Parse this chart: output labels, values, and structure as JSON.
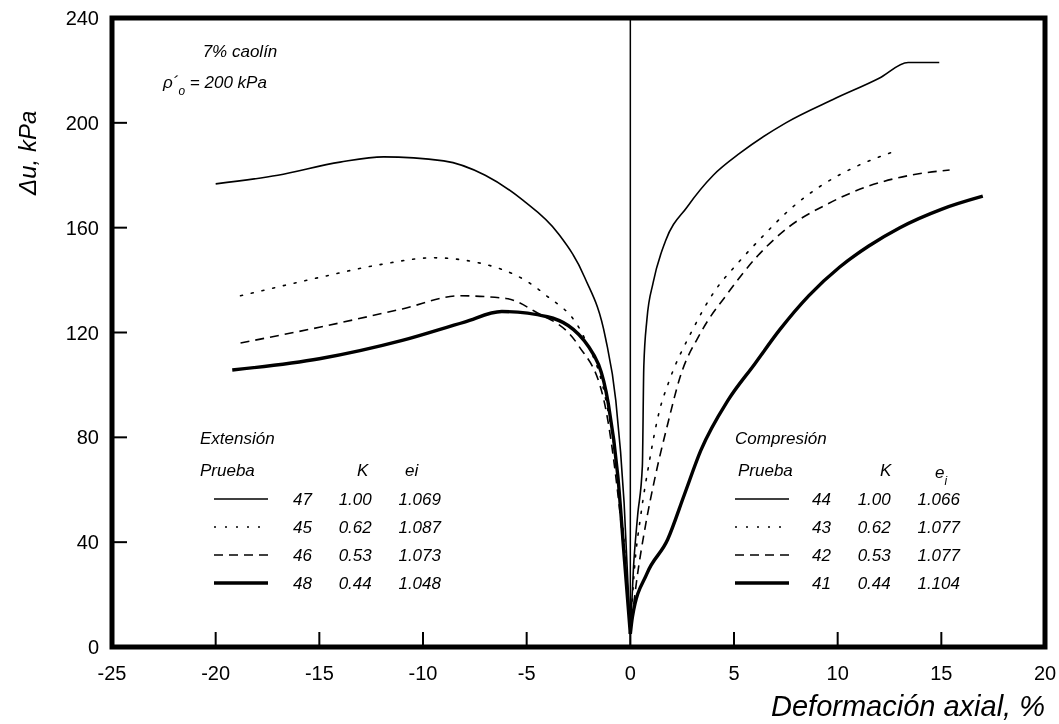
{
  "chart_data": {
    "type": "line",
    "xlabel": "Deformación axial, %",
    "ylabel": "Δu, kPa",
    "xlim": [
      -25,
      20
    ],
    "xticks": [
      -25,
      -20,
      -15,
      -10,
      -5,
      0,
      5,
      10,
      15,
      20
    ],
    "ylim": [
      0,
      240
    ],
    "yticks": [
      0,
      40,
      80,
      120,
      160,
      200,
      240
    ],
    "grid": false,
    "legend": "bottom",
    "ref_lines": [
      {
        "axis": "x",
        "value": 0,
        "color": "#000000"
      }
    ],
    "annotations": [
      "7% caolín",
      "ρ´$_{o}$ = 200 kPa",
      "Extensión",
      "Prueba",
      "K",
      "ei",
      "Compresión",
      "Prueba",
      "K",
      "e$_{i}$"
    ],
    "series": [
      {
        "name": "47 1.00 1.069",
        "color": "#000000",
        "line_style": "solid",
        "x": [
          -20,
          -17,
          -14,
          -11.9,
          -9,
          -7,
          -5.2,
          -3.5,
          -2.2,
          -1.2,
          -0.7,
          -0.3,
          0
        ],
        "values": [
          176.7,
          180,
          185,
          187,
          185.5,
          180,
          170.6,
          158,
          141,
          118,
          94,
          55,
          5
        ]
      },
      {
        "name": "45 0.62 1.087",
        "color": "#000000",
        "line_style": "dotted",
        "x": [
          -18.8,
          -15,
          -12,
          -9.5,
          -7,
          -4.2,
          -2.2,
          -1.2,
          -0.6,
          -0.25,
          0
        ],
        "values": [
          134,
          141,
          146,
          148.5,
          146,
          135,
          117.6,
          95,
          65,
          35,
          5
        ]
      },
      {
        "name": "46 0.53 1.073",
        "color": "#000000",
        "line_style": "dashed",
        "x": [
          -18.8,
          -15,
          -11,
          -8.2,
          -6,
          -4.6,
          -2.5,
          -1.3,
          -0.7,
          -0.3,
          0
        ],
        "values": [
          116,
          122,
          129,
          134,
          133,
          128,
          115,
          95,
          65,
          35,
          5
        ]
      },
      {
        "name": "48 0.44 1.048",
        "color": "#000000",
        "line_style": "solid",
        "x": [
          -19.2,
          -15,
          -11,
          -8,
          -6.2,
          -4,
          -2,
          -1.06,
          -0.6,
          -0.3,
          0
        ],
        "values": [
          105.7,
          110,
          117,
          124,
          128,
          126,
          114.5,
          92.7,
          65,
          35,
          5
        ]
      },
      {
        "name": "44 1.00 1.066",
        "color": "#000000",
        "line_style": "solid",
        "x": [
          0,
          0.15,
          0.35,
          0.58,
          0.65,
          0.8,
          1.1,
          1.7,
          2.75,
          4,
          5.3,
          7.5,
          9.8,
          12,
          13.4,
          14.9
        ],
        "values": [
          5,
          30,
          50,
          69,
          107,
          125,
          139,
          155,
          168,
          180,
          188.5,
          200,
          209,
          217,
          223,
          223
        ]
      },
      {
        "name": "43 0.62 1.077",
        "color": "#000000",
        "line_style": "dotted",
        "x": [
          0,
          0.2,
          0.5,
          0.9,
          1.4,
          1.85,
          3,
          4,
          5.2,
          6.3,
          7.7,
          9.2,
          10.8,
          12.7
        ],
        "values": [
          5,
          30,
          50,
          70,
          90,
          101,
          121,
          135,
          146.6,
          156,
          167,
          176,
          183,
          189
        ]
      },
      {
        "name": "42 0.53 1.077",
        "color": "#000000",
        "line_style": "dashed",
        "x": [
          0,
          0.3,
          0.7,
          1.2,
          1.8,
          2.4,
          3.4,
          4.7,
          6,
          7.6,
          9.5,
          11.4,
          13.5,
          15.4
        ],
        "values": [
          5,
          25,
          45,
          65,
          85,
          103,
          120,
          135,
          148,
          160,
          169,
          175.6,
          180,
          182
        ]
      },
      {
        "name": "41 0.44 1.104",
        "color": "#000000",
        "line_style": "solid",
        "x": [
          0,
          0.1,
          0.8,
          1.8,
          2.6,
          3.4,
          4.7,
          6,
          7.2,
          8.6,
          10.1,
          11.5,
          13,
          15,
          17
        ],
        "values": [
          5,
          11.5,
          28,
          41,
          58,
          75,
          94,
          108,
          121,
          134,
          145,
          153,
          160,
          167,
          172
        ]
      }
    ]
  }
}
